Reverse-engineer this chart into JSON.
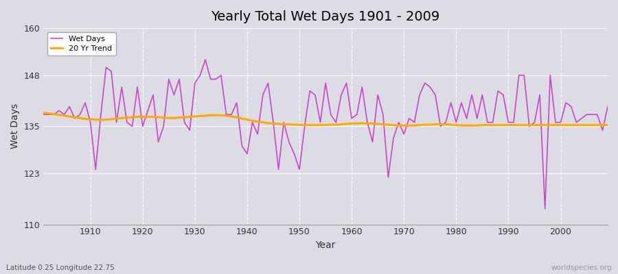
{
  "title": "Yearly Total Wet Days 1901 - 2009",
  "xlabel": "Year",
  "ylabel": "Wet Days",
  "subtitle": "Latitude 0.25 Longitude 22.75",
  "watermark": "worldspecies.org",
  "ylim": [
    110,
    160
  ],
  "yticks": [
    110,
    123,
    135,
    148,
    160
  ],
  "xlim": [
    1901,
    2009
  ],
  "bg_color": "#dcdce4",
  "plot_bg_color": "#dcdce4",
  "wet_days_color": "#cc44cc",
  "trend_color": "#ffaa00",
  "years": [
    1901,
    1902,
    1903,
    1904,
    1905,
    1906,
    1907,
    1908,
    1909,
    1910,
    1911,
    1912,
    1913,
    1914,
    1915,
    1916,
    1917,
    1918,
    1919,
    1920,
    1921,
    1922,
    1923,
    1924,
    1925,
    1926,
    1927,
    1928,
    1929,
    1930,
    1931,
    1932,
    1933,
    1934,
    1935,
    1936,
    1937,
    1938,
    1939,
    1940,
    1941,
    1942,
    1943,
    1944,
    1945,
    1946,
    1947,
    1948,
    1949,
    1950,
    1951,
    1952,
    1953,
    1954,
    1955,
    1956,
    1957,
    1958,
    1959,
    1960,
    1961,
    1962,
    1963,
    1964,
    1965,
    1966,
    1967,
    1968,
    1969,
    1970,
    1971,
    1972,
    1973,
    1974,
    1975,
    1976,
    1977,
    1978,
    1979,
    1980,
    1981,
    1982,
    1983,
    1984,
    1985,
    1986,
    1987,
    1988,
    1989,
    1990,
    1991,
    1992,
    1993,
    1994,
    1995,
    1996,
    1997,
    1998,
    1999,
    2000,
    2001,
    2002,
    2003,
    2004,
    2005,
    2006,
    2007,
    2008,
    2009
  ],
  "wet_days": [
    138,
    138,
    138,
    139,
    138,
    140,
    137,
    138,
    141,
    136,
    124,
    138,
    150,
    149,
    136,
    145,
    136,
    135,
    145,
    135,
    139,
    143,
    131,
    135,
    147,
    143,
    147,
    136,
    134,
    146,
    148,
    152,
    147,
    147,
    148,
    138,
    138,
    141,
    130,
    128,
    136,
    133,
    143,
    146,
    136,
    124,
    136,
    131,
    128,
    124,
    135,
    144,
    143,
    136,
    146,
    138,
    136,
    143,
    146,
    137,
    138,
    145,
    136,
    131,
    143,
    138,
    122,
    132,
    136,
    133,
    137,
    136,
    143,
    146,
    145,
    143,
    135,
    136,
    141,
    136,
    141,
    137,
    143,
    137,
    143,
    136,
    136,
    144,
    143,
    136,
    136,
    148,
    148,
    135,
    136,
    143,
    114,
    148,
    136,
    136,
    141,
    140,
    136,
    137,
    138,
    138,
    138,
    134,
    140
  ],
  "trend": [
    138.5,
    138.3,
    138.1,
    137.9,
    137.7,
    137.5,
    137.3,
    137.1,
    136.9,
    136.8,
    136.7,
    136.6,
    136.7,
    136.8,
    137.0,
    137.1,
    137.2,
    137.3,
    137.4,
    137.4,
    137.4,
    137.4,
    137.3,
    137.2,
    137.1,
    137.1,
    137.2,
    137.3,
    137.4,
    137.5,
    137.6,
    137.7,
    137.8,
    137.8,
    137.8,
    137.7,
    137.5,
    137.3,
    137.0,
    136.7,
    136.4,
    136.2,
    136.0,
    135.8,
    135.7,
    135.6,
    135.5,
    135.5,
    135.4,
    135.4,
    135.3,
    135.3,
    135.3,
    135.3,
    135.3,
    135.4,
    135.4,
    135.5,
    135.6,
    135.7,
    135.7,
    135.8,
    135.7,
    135.7,
    135.6,
    135.5,
    135.4,
    135.3,
    135.2,
    135.2,
    135.2,
    135.2,
    135.3,
    135.4,
    135.4,
    135.5,
    135.5,
    135.5,
    135.4,
    135.3,
    135.2,
    135.2,
    135.2,
    135.2,
    135.3,
    135.3,
    135.3,
    135.3,
    135.3,
    135.3,
    135.3,
    135.3,
    135.3,
    135.3,
    135.3,
    135.3,
    135.3,
    135.3,
    135.3,
    135.3,
    135.3,
    135.3,
    135.3,
    135.3,
    135.3,
    135.3,
    135.3,
    135.3,
    135.3
  ]
}
